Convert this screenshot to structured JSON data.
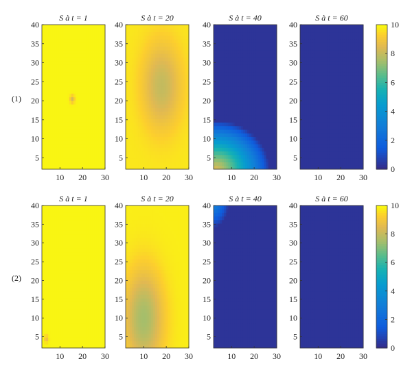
{
  "chart_data": {
    "type": "heatmap",
    "rows": [
      {
        "label": "(1)",
        "panels": [
          {
            "title": "S à t = 1",
            "field": {
              "base": 9.9,
              "blobs": [
                {
                  "cx": 15.5,
                  "cy": 20.5,
                  "sx": 0.7,
                  "sy": 0.7,
                  "amp": -1.6
                }
              ]
            }
          },
          {
            "title": "S à t = 20",
            "field": {
              "base": 9.7,
              "blobs": [
                {
                  "cx": 18,
                  "cy": 24,
                  "sx": 6,
                  "sy": 8,
                  "amp": -1.7
                }
              ]
            }
          },
          {
            "title": "S à t = 40",
            "field": {
              "corner": {
                "cx": 3,
                "cy": 2,
                "rx": 24,
                "ry": 13,
                "max": 8.5,
                "mode": "corner"
              }
            }
          },
          {
            "title": "S à t = 60",
            "field": {
              "base": 0.3,
              "blobs": []
            }
          }
        ]
      },
      {
        "label": "(2)",
        "panels": [
          {
            "title": "S à t = 1",
            "field": {
              "base": 9.9,
              "blobs": [
                {
                  "cx": 4,
                  "cy": 4.5,
                  "sx": 0.6,
                  "sy": 0.7,
                  "amp": -1.2
                }
              ]
            }
          },
          {
            "title": "S à t = 20",
            "field": {
              "base": 9.8,
              "blobs": [
                {
                  "cx": 10,
                  "cy": 10,
                  "sx": 6,
                  "sy": 9,
                  "amp": -2.3
                }
              ]
            }
          },
          {
            "title": "S à t = 40",
            "field": {
              "corner": {
                "cx": 2,
                "cy": 41,
                "rx": 7,
                "ry": 7,
                "max": 3.5,
                "mode": "topleft"
              }
            }
          },
          {
            "title": "S à t = 60",
            "field": {
              "base": 0.3,
              "blobs": []
            }
          }
        ]
      }
    ],
    "xlim": [
      2,
      30
    ],
    "ylim_row1": [
      2,
      40
    ],
    "ylim_row2": [
      2,
      40
    ],
    "xticks": [
      10,
      20,
      30
    ],
    "yticks_row1": [
      5,
      10,
      15,
      20,
      25,
      30,
      35,
      40
    ],
    "yticks_row2": [
      5,
      10,
      15,
      20,
      25,
      30,
      35,
      40
    ],
    "colorbar": {
      "min": 0,
      "max": 10,
      "ticks": [
        0,
        2,
        4,
        6,
        8,
        10
      ],
      "colormap": "parula"
    }
  }
}
